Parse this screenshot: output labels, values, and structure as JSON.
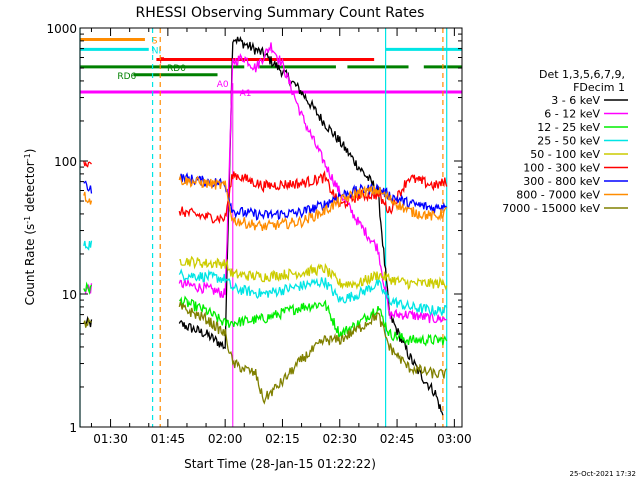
{
  "chart_data": {
    "type": "line",
    "title": "RHESSI Observing Summary Count Rates",
    "xlabel": "Start Time (28-Jan-15 01:22:22)",
    "ylabel_parts": [
      "Count Rate (s",
      "-1",
      " detector",
      "-1",
      ")"
    ],
    "yscale": "log",
    "ylim": [
      1,
      1000
    ],
    "xlim": [
      "01:22",
      "03:02"
    ],
    "x_ticks": [
      "01:30",
      "01:45",
      "02:00",
      "02:15",
      "02:30",
      "02:45",
      "03:00"
    ],
    "y_ticks": [
      "1",
      "10",
      "100",
      "1000"
    ],
    "legend_header": [
      "Det 1,3,5,6,7,9,",
      "FDecim 1"
    ],
    "series": [
      {
        "name": "3 - 6 keV",
        "color": "#000000",
        "x": [
          "01:23",
          "01:25",
          "01:40",
          "01:48",
          "01:55",
          "02:00",
          "02:02",
          "02:05",
          "02:10",
          "02:15",
          "02:20",
          "02:25",
          "02:30",
          "02:35",
          "02:40",
          "02:43",
          "02:48",
          "02:51",
          "02:55",
          "02:57"
        ],
        "y": [
          6,
          6,
          null,
          6,
          5,
          4,
          850,
          760,
          640,
          470,
          330,
          210,
          140,
          90,
          60,
          7,
          3.5,
          2.5,
          1.8,
          1.2
        ]
      },
      {
        "name": "6 - 12 keV",
        "color": "#ff00ff",
        "x": [
          "01:23",
          "01:25",
          "01:40",
          "01:48",
          "01:55",
          "02:00",
          "02:02",
          "02:05",
          "02:08",
          "02:12",
          "02:15",
          "02:20",
          "02:25",
          "02:30",
          "02:35",
          "02:40",
          "02:43",
          "02:48",
          "02:55",
          "02:58"
        ],
        "y": [
          11,
          11,
          null,
          12,
          11,
          10,
          560,
          600,
          500,
          740,
          530,
          220,
          110,
          58,
          34,
          22,
          7,
          7,
          6.5,
          6.5
        ]
      },
      {
        "name": "12 - 25 keV",
        "color": "#00ee00",
        "x": [
          "01:23",
          "01:25",
          "01:40",
          "01:48",
          "01:55",
          "02:00",
          "02:10",
          "02:20",
          "02:26",
          "02:30",
          "02:35",
          "02:40",
          "02:43",
          "02:48",
          "02:55",
          "02:58"
        ],
        "y": [
          11,
          11,
          null,
          9,
          7.5,
          6,
          6.5,
          8,
          8.5,
          5,
          6,
          8,
          5,
          4.5,
          4.5,
          4.5
        ]
      },
      {
        "name": "25 - 50 keV",
        "color": "#00e5e5",
        "x": [
          "01:23",
          "01:25",
          "01:40",
          "01:48",
          "01:55",
          "02:00",
          "02:02",
          "02:10",
          "02:20",
          "02:26",
          "02:30",
          "02:35",
          "02:40",
          "02:43",
          "02:48",
          "02:55",
          "02:58"
        ],
        "y": [
          23,
          24,
          null,
          14,
          13.5,
          13,
          11,
          10,
          11.5,
          12.5,
          9,
          10,
          12,
          9,
          8,
          7.5,
          7.5
        ]
      },
      {
        "name": "50 - 100 keV",
        "color": "#cccc00",
        "x": [
          "01:23",
          "01:25",
          "01:40",
          "01:48",
          "01:55",
          "02:00",
          "02:02",
          "02:10",
          "02:20",
          "02:26",
          "02:30",
          "02:35",
          "02:40",
          "02:43",
          "02:48",
          "02:55",
          "02:58"
        ],
        "y": [
          null,
          null,
          null,
          18,
          17,
          17,
          14,
          13.5,
          14.5,
          15.5,
          12,
          12,
          14,
          13,
          12,
          12,
          12
        ]
      },
      {
        "name": "100 - 300 keV",
        "color": "#ff0000",
        "x": [
          "01:23",
          "01:25",
          "01:40",
          "01:48",
          "01:55",
          "02:00",
          "02:02",
          "02:10",
          "02:20",
          "02:26",
          "02:30",
          "02:35",
          "02:40",
          "02:43",
          "02:48",
          "02:55",
          "02:58"
        ],
        "y": [
          100,
          90,
          null,
          42,
          38,
          37,
          80,
          65,
          68,
          75,
          46,
          55,
          56,
          42,
          75,
          65,
          70
        ]
      },
      {
        "name": "300 - 800 keV",
        "color": "#0000ff",
        "x": [
          "01:23",
          "01:25",
          "01:40",
          "01:48",
          "01:55",
          "02:00",
          "02:02",
          "02:10",
          "02:20",
          "02:26",
          "02:30",
          "02:35",
          "02:40",
          "02:43",
          "02:48",
          "02:55",
          "02:58"
        ],
        "y": [
          68,
          62,
          null,
          75,
          70,
          68,
          42,
          39,
          41,
          47,
          55,
          60,
          62,
          55,
          48,
          44,
          48
        ]
      },
      {
        "name": "800 - 7000 keV",
        "color": "#ff8c00",
        "x": [
          "01:23",
          "01:25",
          "01:40",
          "01:48",
          "01:55",
          "02:00",
          "02:02",
          "02:10",
          "02:20",
          "02:26",
          "02:30",
          "02:35",
          "02:40",
          "02:43",
          "02:48",
          "02:55",
          "02:58"
        ],
        "y": [
          55,
          50,
          null,
          72,
          68,
          65,
          36,
          32,
          35,
          42,
          50,
          58,
          60,
          52,
          42,
          38,
          42
        ]
      },
      {
        "name": "7000 - 15000 keV",
        "color": "#808000",
        "x": [
          "01:23",
          "01:25",
          "01:40",
          "01:48",
          "01:55",
          "02:00",
          "02:02",
          "02:08",
          "02:10",
          "02:15",
          "02:20",
          "02:26",
          "02:30",
          "02:35",
          "02:40",
          "02:43",
          "02:48",
          "02:55",
          "02:58"
        ],
        "y": [
          6,
          6,
          null,
          8,
          6.5,
          5,
          3,
          2.5,
          1.6,
          2.2,
          3.2,
          4.5,
          4.5,
          5.5,
          7,
          4,
          2.8,
          2.5,
          2.5
        ]
      }
    ],
    "vertical_lines": [
      {
        "x": "01:22",
        "color": "#00e5e5",
        "style": "solid"
      },
      {
        "x": "01:41",
        "color": "#00e5e5",
        "style": "dashed"
      },
      {
        "x": "01:43",
        "color": "#ff8c00",
        "style": "dashed"
      },
      {
        "x": "02:42",
        "color": "#00e5e5",
        "style": "solid"
      },
      {
        "x": "02:57",
        "color": "#ff8c00",
        "style": "dashed"
      },
      {
        "x": "02:58",
        "color": "#00e5e5",
        "style": "solid"
      }
    ],
    "flag_bars": [
      {
        "label": "S",
        "color": "#ff8c00",
        "y": 820,
        "segments": [
          [
            "01:22",
            "01:39"
          ]
        ]
      },
      {
        "label": "NI",
        "color": "#00e5e5",
        "y": 690,
        "segments": [
          [
            "01:22",
            "01:40"
          ],
          [
            "02:42",
            "03:02"
          ]
        ]
      },
      {
        "label": "F",
        "color": "#ff0000",
        "y": 580,
        "segments": [
          [
            "01:42",
            "02:39"
          ]
        ]
      },
      {
        "label": "RD0",
        "color": "#008000",
        "y": 510,
        "segments": [
          [
            "01:22",
            "02:05"
          ],
          [
            "02:09",
            "02:29"
          ],
          [
            "02:32",
            "02:48"
          ],
          [
            "02:52",
            "03:02"
          ]
        ]
      },
      {
        "label": "RD6",
        "color": "#008000",
        "y": 445,
        "segments": [
          [
            "01:36",
            "01:58"
          ]
        ]
      },
      {
        "label": "A0",
        "color": "#ff00ff",
        "y": 385,
        "segments": []
      },
      {
        "label": "A1",
        "color": "#ff00ff",
        "y": 330,
        "segments": [
          [
            "01:22",
            "02:02"
          ],
          [
            "02:02",
            "03:02"
          ]
        ]
      }
    ],
    "grid": false,
    "legend_position": "right"
  },
  "timestamp": "25-Oct-2021 17:32"
}
